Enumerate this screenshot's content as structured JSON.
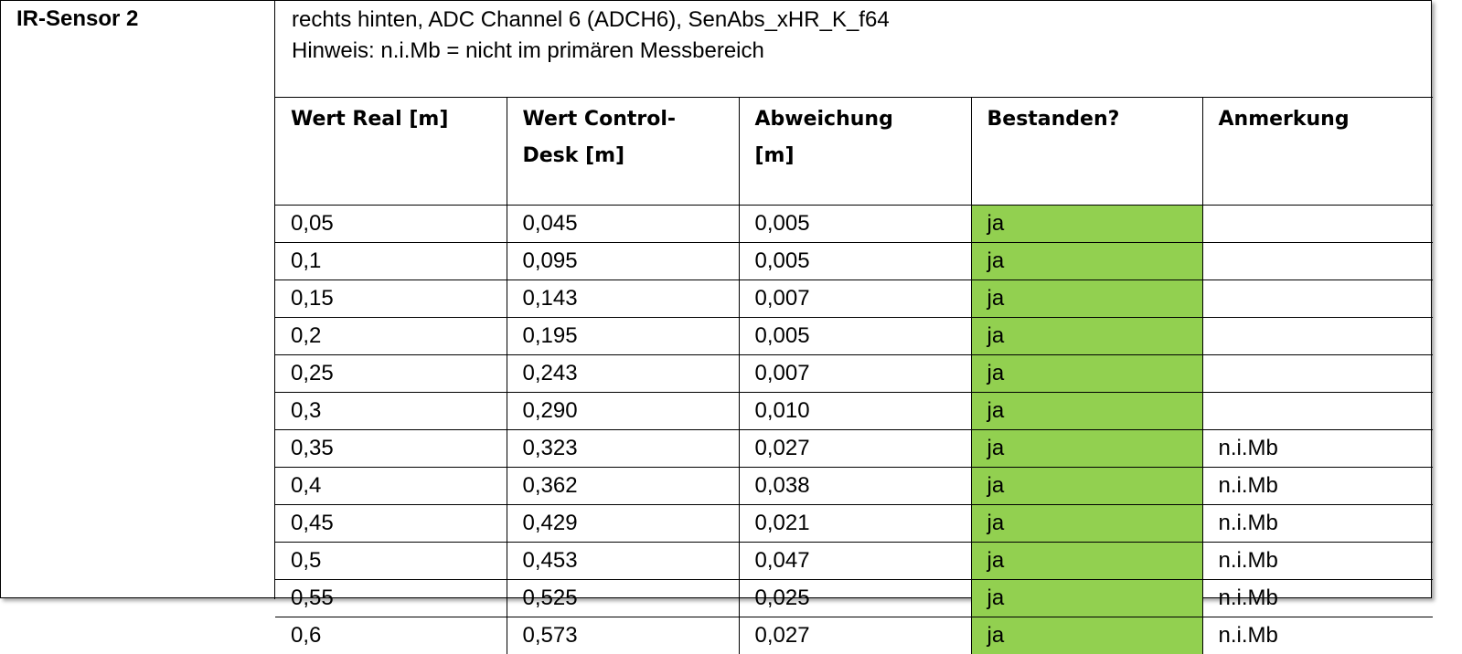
{
  "sensor_label": "IR-Sensor 2",
  "description_line1": "rechts hinten, ADC Channel 6 (ADCH6), SenAbs_xHR_K_f64",
  "description_line2": "Hinweis: n.i.Mb = nicht im primären Messbereich",
  "pass_color": "#92D050",
  "columns": [
    "Wert Real [m]",
    "Wert Control-Desk [m]",
    "Abweichung [m]",
    "Bestanden?",
    "Anmerkung"
  ],
  "rows": [
    [
      "0,05",
      "0,045",
      "0,005",
      "ja",
      ""
    ],
    [
      "0,1",
      "0,095",
      "0,005",
      "ja",
      ""
    ],
    [
      "0,15",
      "0,143",
      "0,007",
      "ja",
      ""
    ],
    [
      "0,2",
      "0,195",
      "0,005",
      "ja",
      ""
    ],
    [
      "0,25",
      "0,243",
      "0,007",
      "ja",
      ""
    ],
    [
      "0,3",
      "0,290",
      "0,010",
      "ja",
      ""
    ],
    [
      "0,35",
      "0,323",
      "0,027",
      "ja",
      "n.i.Mb"
    ],
    [
      "0,4",
      "0,362",
      "0,038",
      "ja",
      "n.i.Mb"
    ],
    [
      "0,45",
      "0,429",
      "0,021",
      "ja",
      "n.i.Mb"
    ],
    [
      "0,5",
      "0,453",
      "0,047",
      "ja",
      "n.i.Mb"
    ],
    [
      "0,55",
      "0,525",
      "0,025",
      "ja",
      "n.i.Mb"
    ],
    [
      "0,6",
      "0,573",
      "0,027",
      "ja",
      "n.i.Mb"
    ]
  ]
}
